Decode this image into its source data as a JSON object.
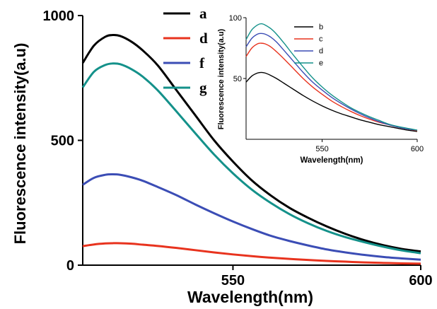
{
  "chart_data": [
    {
      "type": "line",
      "xlabel": "Wavelength(nm)",
      "ylabel": "Fluorescence intensity(a.u)",
      "xlim": [
        510,
        600
      ],
      "ylim": [
        0,
        1000
      ],
      "x_ticks": [
        550,
        600
      ],
      "y_ticks": [
        0,
        500,
        1000
      ],
      "grid": false,
      "legend_position": "top-right",
      "x": [
        510,
        513,
        516,
        518,
        520,
        523,
        526,
        530,
        535,
        540,
        545,
        550,
        555,
        560,
        565,
        570,
        575,
        580,
        585,
        590,
        595,
        600
      ],
      "series": [
        {
          "name": "a",
          "color": "#000000",
          "values": [
            810,
            880,
            915,
            922,
            918,
            895,
            860,
            800,
            700,
            600,
            500,
            415,
            340,
            280,
            230,
            190,
            155,
            125,
            100,
            80,
            65,
            55
          ]
        },
        {
          "name": "d",
          "color": "#e8331e",
          "values": [
            76,
            83,
            87,
            88,
            88,
            86,
            82,
            77,
            69,
            60,
            51,
            43,
            36,
            30,
            25,
            21,
            17,
            14,
            11,
            9,
            7,
            6
          ]
        },
        {
          "name": "f",
          "color": "#3b4db5",
          "values": [
            322,
            350,
            362,
            364,
            362,
            352,
            338,
            313,
            280,
            243,
            208,
            175,
            145,
            118,
            97,
            79,
            63,
            51,
            41,
            33,
            27,
            22
          ]
        },
        {
          "name": "g",
          "color": "#14918a",
          "values": [
            712,
            775,
            802,
            808,
            805,
            785,
            755,
            700,
            615,
            528,
            443,
            368,
            303,
            250,
            205,
            168,
            137,
            112,
            92,
            74,
            59,
            48
          ]
        }
      ]
    },
    {
      "type": "line",
      "xlabel": "Wavelength(nm)",
      "ylabel": "Fluorescence intensity(a.u)",
      "xlim": [
        510,
        600
      ],
      "ylim": [
        0,
        100
      ],
      "x_ticks": [
        550,
        600
      ],
      "y_ticks": [
        50,
        100
      ],
      "grid": false,
      "legend_position": "top-left",
      "x": [
        510,
        513,
        516,
        518,
        520,
        523,
        526,
        530,
        535,
        540,
        545,
        550,
        555,
        560,
        565,
        570,
        575,
        580,
        585,
        590,
        595,
        600
      ],
      "series": [
        {
          "name": "b",
          "color": "#000000",
          "values": [
            47,
            52,
            54.5,
            55,
            54.5,
            52.5,
            50,
            46,
            41,
            36,
            31.5,
            27.5,
            24,
            21,
            18.5,
            16,
            14,
            12,
            10.5,
            9,
            7.5,
            6.5
          ]
        },
        {
          "name": "c",
          "color": "#e8331e",
          "values": [
            68,
            75,
            78.5,
            79,
            78.5,
            76,
            72,
            66,
            58,
            50,
            43,
            37,
            31.5,
            27,
            23,
            19.5,
            16.5,
            14,
            12,
            10,
            8.5,
            7
          ]
        },
        {
          "name": "d",
          "color": "#3b4db5",
          "values": [
            76,
            83,
            86.5,
            87,
            86.5,
            84,
            80,
            73,
            64,
            55,
            47,
            40.5,
            34.5,
            29.5,
            25,
            21,
            17.5,
            14.5,
            12,
            10,
            8.5,
            7.5
          ]
        },
        {
          "name": "e",
          "color": "#14918a",
          "values": [
            82,
            90,
            94,
            95,
            94,
            91,
            86.5,
            79,
            69,
            59.5,
            50.5,
            43,
            36.5,
            31,
            26,
            22,
            18.5,
            15.5,
            12.5,
            10.5,
            9,
            7.5
          ]
        }
      ]
    }
  ]
}
